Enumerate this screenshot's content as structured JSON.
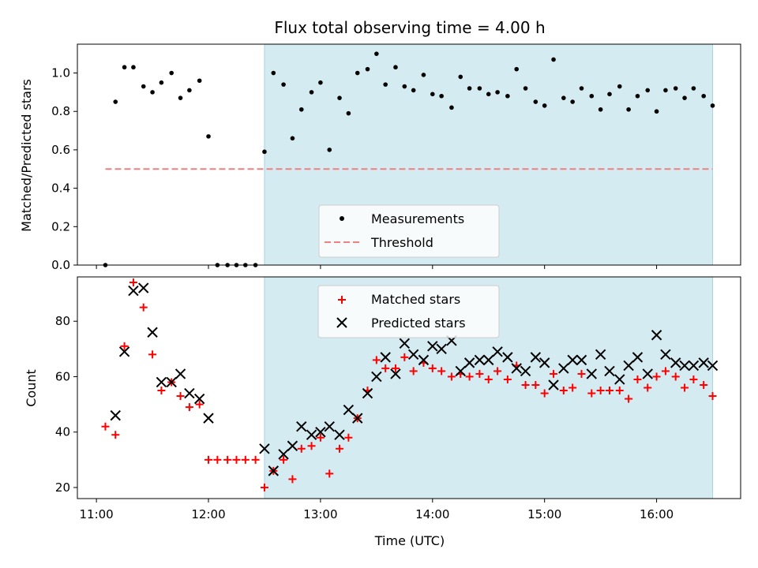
{
  "chart_data": [
    {
      "type": "scatter",
      "title": "Flux total observing time = 4.00 h",
      "xlabel": "",
      "ylabel": "Matched/Predicted stars",
      "xlim": [
        10.83,
        16.75
      ],
      "ylim": [
        0.0,
        1.15
      ],
      "yticks": [
        0.0,
        0.2,
        0.4,
        0.6,
        0.8,
        1.0
      ],
      "ytick_labels": [
        "0.0",
        "0.2",
        "0.4",
        "0.6",
        "0.8",
        "1.0"
      ],
      "shaded_region": [
        12.5,
        16.5
      ],
      "shade_color": "#d4ebf1",
      "series": [
        {
          "name": "Measurements",
          "marker": "dot",
          "color": "#000000",
          "x": [
            11.08,
            11.17,
            11.25,
            11.33,
            11.42,
            11.5,
            11.58,
            11.67,
            11.75,
            11.83,
            11.92,
            12.0,
            12.08,
            12.17,
            12.25,
            12.33,
            12.42,
            12.5,
            12.58,
            12.67,
            12.75,
            12.83,
            12.92,
            13.0,
            13.08,
            13.17,
            13.25,
            13.33,
            13.42,
            13.5,
            13.58,
            13.67,
            13.75,
            13.83,
            13.92,
            14.0,
            14.08,
            14.17,
            14.25,
            14.33,
            14.42,
            14.5,
            14.58,
            14.67,
            14.75,
            14.83,
            14.92,
            15.0,
            15.08,
            15.17,
            15.25,
            15.33,
            15.42,
            15.5,
            15.58,
            15.67,
            15.75,
            15.83,
            15.92,
            16.0,
            16.08,
            16.17,
            16.25,
            16.33,
            16.42,
            16.5
          ],
          "y": [
            0.0,
            0.85,
            1.03,
            1.03,
            0.93,
            0.9,
            0.95,
            1.0,
            0.87,
            0.91,
            0.96,
            0.67,
            0.0,
            0.0,
            0.0,
            0.0,
            0.0,
            0.59,
            1.0,
            0.94,
            0.66,
            0.81,
            0.9,
            0.95,
            0.6,
            0.87,
            0.79,
            1.0,
            1.02,
            1.1,
            0.94,
            1.03,
            0.93,
            0.91,
            0.99,
            0.89,
            0.88,
            0.82,
            0.98,
            0.92,
            0.92,
            0.89,
            0.9,
            0.88,
            1.02,
            0.92,
            0.85,
            0.83,
            1.07,
            0.87,
            0.85,
            0.92,
            0.88,
            0.81,
            0.89,
            0.93,
            0.81,
            0.88,
            0.91,
            0.8,
            0.91,
            0.92,
            0.87,
            0.92,
            0.88,
            0.83
          ]
        },
        {
          "name": "Threshold",
          "style": "dashed",
          "color": "#f08080",
          "x": [
            11.08,
            16.5
          ],
          "y": [
            0.5,
            0.5
          ]
        }
      ],
      "legend": {
        "position": "lower-center",
        "entries": [
          "Measurements",
          "Threshold"
        ]
      }
    },
    {
      "type": "scatter",
      "xlabel": "Time (UTC)",
      "ylabel": "Count",
      "xlim": [
        10.83,
        16.75
      ],
      "ylim": [
        16,
        96
      ],
      "yticks": [
        20,
        40,
        60,
        80
      ],
      "ytick_labels": [
        "20",
        "40",
        "60",
        "80"
      ],
      "xticks": [
        11,
        12,
        13,
        14,
        15,
        16
      ],
      "xtick_labels": [
        "11:00",
        "12:00",
        "13:00",
        "14:00",
        "15:00",
        "16:00"
      ],
      "shaded_region": [
        12.5,
        16.5
      ],
      "shade_color": "#d4ebf1",
      "series": [
        {
          "name": "Matched stars",
          "marker": "plus",
          "color": "#ff0000",
          "x": [
            11.08,
            11.17,
            11.25,
            11.33,
            11.42,
            11.5,
            11.58,
            11.67,
            11.75,
            11.83,
            11.92,
            12.0,
            12.08,
            12.17,
            12.25,
            12.33,
            12.42,
            12.5,
            12.58,
            12.67,
            12.75,
            12.83,
            12.92,
            13.0,
            13.08,
            13.17,
            13.25,
            13.33,
            13.42,
            13.5,
            13.58,
            13.67,
            13.75,
            13.83,
            13.92,
            14.0,
            14.08,
            14.17,
            14.25,
            14.33,
            14.42,
            14.5,
            14.58,
            14.67,
            14.75,
            14.83,
            14.92,
            15.0,
            15.08,
            15.17,
            15.25,
            15.33,
            15.42,
            15.5,
            15.58,
            15.67,
            15.75,
            15.83,
            15.92,
            16.0,
            16.08,
            16.17,
            16.25,
            16.33,
            16.42,
            16.5
          ],
          "y": [
            42,
            39,
            71,
            94,
            85,
            68,
            55,
            58,
            53,
            49,
            50,
            30,
            30,
            30,
            30,
            30,
            30,
            20,
            26,
            30,
            23,
            34,
            35,
            38,
            25,
            34,
            38,
            45,
            55,
            66,
            63,
            63,
            67,
            62,
            65,
            63,
            62,
            60,
            61,
            60,
            61,
            59,
            62,
            59,
            64,
            57,
            57,
            54,
            61,
            55,
            56,
            61,
            54,
            55,
            55,
            55,
            52,
            59,
            56,
            60,
            62,
            60,
            56,
            59,
            57,
            53
          ]
        },
        {
          "name": "Predicted stars",
          "marker": "x",
          "color": "#000000",
          "x": [
            11.17,
            11.25,
            11.33,
            11.42,
            11.5,
            11.58,
            11.67,
            11.75,
            11.83,
            11.92,
            12.0,
            12.5,
            12.58,
            12.67,
            12.75,
            12.83,
            12.92,
            13.0,
            13.08,
            13.17,
            13.25,
            13.33,
            13.42,
            13.5,
            13.58,
            13.67,
            13.75,
            13.83,
            13.92,
            14.0,
            14.08,
            14.17,
            14.25,
            14.33,
            14.42,
            14.5,
            14.58,
            14.67,
            14.75,
            14.83,
            14.92,
            15.0,
            15.08,
            15.17,
            15.25,
            15.33,
            15.42,
            15.5,
            15.58,
            15.67,
            15.75,
            15.83,
            15.92,
            16.0,
            16.08,
            16.17,
            16.25,
            16.33,
            16.42,
            16.5
          ],
          "y": [
            46,
            69,
            91,
            92,
            76,
            58,
            58,
            61,
            54,
            52,
            45,
            34,
            26,
            32,
            35,
            42,
            39,
            40,
            42,
            39,
            48,
            45,
            54,
            60,
            67,
            61,
            72,
            68,
            66,
            71,
            70,
            73,
            62,
            65,
            66,
            66,
            69,
            67,
            63,
            62,
            67,
            65,
            57,
            63,
            66,
            66,
            61,
            68,
            62,
            59,
            64,
            67,
            61,
            75,
            68,
            65,
            64,
            64,
            65,
            64
          ]
        }
      ],
      "legend": {
        "position": "upper-center",
        "entries": [
          "Matched stars",
          "Predicted stars"
        ]
      }
    }
  ]
}
